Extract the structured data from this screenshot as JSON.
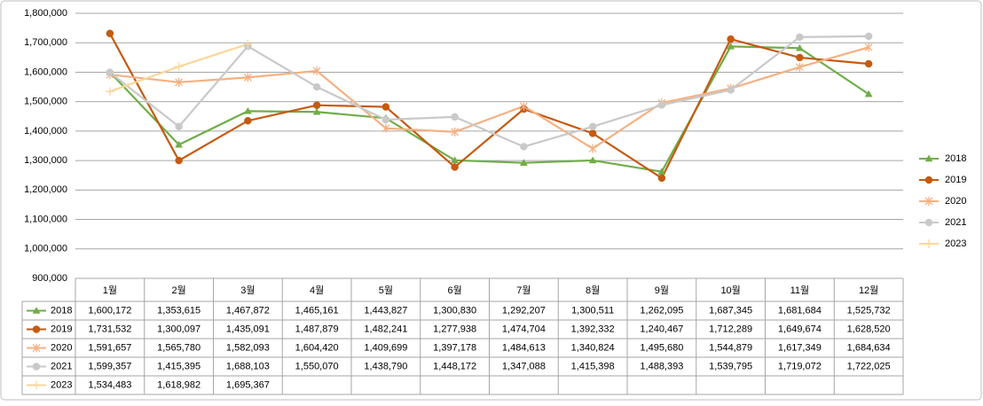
{
  "chart_data": {
    "type": "line",
    "categories": [
      "1월",
      "2월",
      "3월",
      "4월",
      "5월",
      "6월",
      "7월",
      "8월",
      "9월",
      "10월",
      "11월",
      "12월"
    ],
    "series": [
      {
        "name": "2018",
        "color": "#70ad47",
        "marker": "triangle",
        "values": [
          1600172,
          1353615,
          1467872,
          1465161,
          1443827,
          1300830,
          1292207,
          1300511,
          1262095,
          1687345,
          1681684,
          1525732
        ],
        "value_labels": [
          "1,600,172",
          "1,353,615",
          "1,467,872",
          "1,465,161",
          "1,443,827",
          "1,300,830",
          "1,292,207",
          "1,300,511",
          "1,262,095",
          "1,687,345",
          "1,681,684",
          "1,525,732"
        ]
      },
      {
        "name": "2019",
        "color": "#c55a11",
        "marker": "circle",
        "values": [
          1731532,
          1300097,
          1435091,
          1487879,
          1482241,
          1277938,
          1474704,
          1392332,
          1240467,
          1712289,
          1649674,
          1628520
        ],
        "value_labels": [
          "1,731,532",
          "1,300,097",
          "1,435,091",
          "1,487,879",
          "1,482,241",
          "1,277,938",
          "1,474,704",
          "1,392,332",
          "1,240,467",
          "1,712,289",
          "1,649,674",
          "1,628,520"
        ]
      },
      {
        "name": "2020",
        "color": "#f4b183",
        "marker": "star",
        "values": [
          1591657,
          1565780,
          1582093,
          1604420,
          1409699,
          1397178,
          1484613,
          1340824,
          1495680,
          1544879,
          1617349,
          1684634
        ],
        "value_labels": [
          "1,591,657",
          "1,565,780",
          "1,582,093",
          "1,604,420",
          "1,409,699",
          "1,397,178",
          "1,484,613",
          "1,340,824",
          "1,495,680",
          "1,544,879",
          "1,617,349",
          "1,684,634"
        ]
      },
      {
        "name": "2021",
        "color": "#c9c9c9",
        "marker": "circle",
        "values": [
          1599357,
          1415395,
          1688103,
          1550070,
          1438790,
          1448172,
          1347088,
          1415398,
          1488393,
          1539795,
          1719072,
          1722025
        ],
        "value_labels": [
          "1,599,357",
          "1,415,395",
          "1,688,103",
          "1,550,070",
          "1,438,790",
          "1,448,172",
          "1,347,088",
          "1,415,398",
          "1,488,393",
          "1,539,795",
          "1,719,072",
          "1,722,025"
        ]
      },
      {
        "name": "2023",
        "color": "#fad79a",
        "marker": "plus",
        "values": [
          1534483,
          1618982,
          1695367,
          null,
          null,
          null,
          null,
          null,
          null,
          null,
          null,
          null
        ],
        "value_labels": [
          "1,534,483",
          "1,618,982",
          "1,695,367",
          null,
          null,
          null,
          null,
          null,
          null,
          null,
          null,
          null
        ]
      }
    ],
    "ylim": [
      900000,
      1800000
    ],
    "yticks": [
      {
        "value": 900000,
        "label": "900,000"
      },
      {
        "value": 1000000,
        "label": "1,000,000"
      },
      {
        "value": 1100000,
        "label": "1,100,000"
      },
      {
        "value": 1200000,
        "label": "1,200,000"
      },
      {
        "value": 1300000,
        "label": "1,300,000"
      },
      {
        "value": 1400000,
        "label": "1,400,000"
      },
      {
        "value": 1500000,
        "label": "1,500,000"
      },
      {
        "value": 1600000,
        "label": "1,600,000"
      },
      {
        "value": 1700000,
        "label": "1,700,000"
      },
      {
        "value": 1800000,
        "label": "1,800,000"
      }
    ],
    "grid": true,
    "legend": "right",
    "data_table": true
  }
}
